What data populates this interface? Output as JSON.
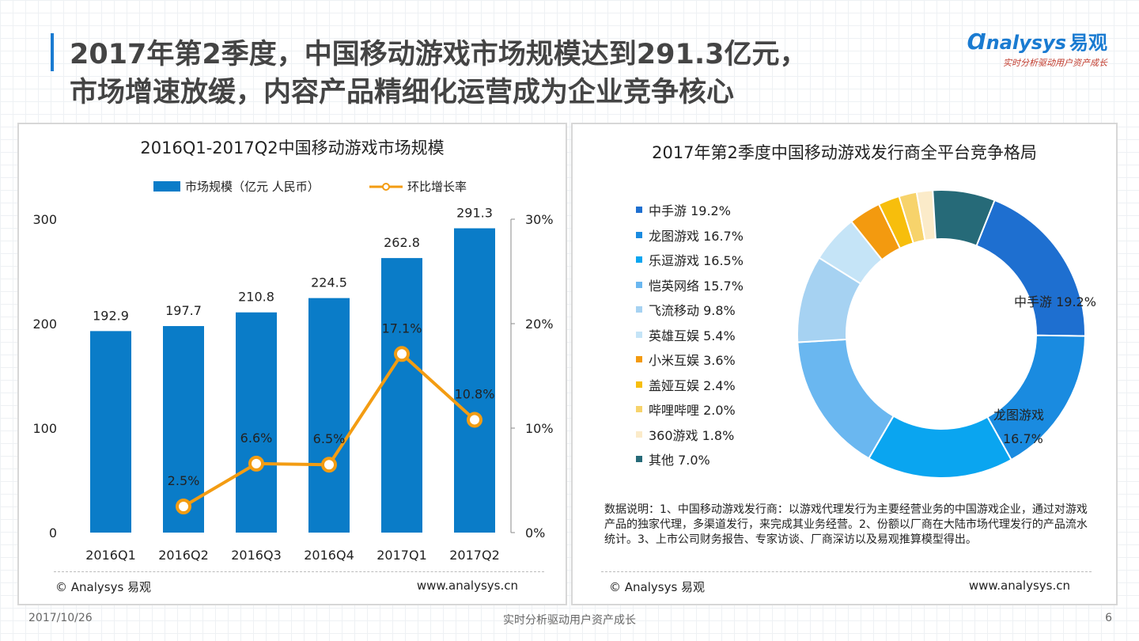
{
  "header": {
    "title_line1": "2017年第2季度，中国移动游戏市场规模达到291.3亿元，",
    "title_line2": "市场增速放缓，内容产品精细化运营成为企业竞争核心",
    "logo_text": "nalysys",
    "logo_cn": "易观",
    "logo_tagline": "实时分析驱动用户资产成长"
  },
  "left_panel": {
    "copyright": "© Analysys 易观",
    "url": "www.analysys.cn"
  },
  "right_panel": {
    "copyright": "© Analysys 易观",
    "url": "www.analysys.cn",
    "note": "数据说明：1、中国移动游戏发行商：以游戏代理发行为主要经营业务的中国游戏企业，通过对游戏产品的独家代理，多渠道发行，来完成其业务经营。2、份额以厂商在大陆市场代理发行的产品流水统计。3、上市公司财务报告、专家访谈、厂商深访以及易观推算模型得出。"
  },
  "page_footer": {
    "date": "2017/10/26",
    "slogan": "实时分析驱动用户资产成长",
    "page_number": "6"
  },
  "chart_data": [
    {
      "type": "bar",
      "title": "2016Q1-2017Q2中国移动游戏市场规模",
      "categories": [
        "2016Q1",
        "2016Q2",
        "2016Q3",
        "2016Q4",
        "2017Q1",
        "2017Q2"
      ],
      "series": [
        {
          "name": "市场规模（亿元 人民币）",
          "type": "bar",
          "axis": "left",
          "values": [
            192.9,
            197.7,
            210.8,
            224.5,
            262.8,
            291.3
          ],
          "labels": [
            "192.9",
            "197.7",
            "210.8",
            "224.5",
            "262.8",
            "291.3"
          ],
          "color": "#0a7cc8"
        },
        {
          "name": "环比增长率",
          "type": "line",
          "axis": "right",
          "values": [
            null,
            2.5,
            6.6,
            6.5,
            17.1,
            10.8
          ],
          "labels": [
            "",
            "2.5%",
            "6.6%",
            "6.5%",
            "17.1%",
            "10.8%"
          ],
          "color": "#f39c12"
        }
      ],
      "ylim": [
        0,
        300
      ],
      "yticks": [
        "0",
        "100",
        "200",
        "300"
      ],
      "y2lim": [
        0,
        30
      ],
      "y2ticks": [
        "0%",
        "10%",
        "20%",
        "30%"
      ],
      "legend_position": "top"
    },
    {
      "type": "pie",
      "donut": true,
      "title": "2017年第2季度中国移动游戏发行商全平台竞争格局",
      "slices": [
        {
          "name": "中手游",
          "value": 19.2,
          "label": "中手游 19.2%",
          "color": "#1e6fd0"
        },
        {
          "name": "龙图游戏",
          "value": 16.7,
          "label": "龙图游戏 16.7%",
          "color": "#1a8be0"
        },
        {
          "name": "乐逗游戏",
          "value": 16.5,
          "label": "乐逗游戏 16.5%",
          "color": "#0aa5f0"
        },
        {
          "name": "恺英网络",
          "value": 15.7,
          "label": "恺英网络 15.7%",
          "color": "#6ab7f0"
        },
        {
          "name": "飞流移动",
          "value": 9.8,
          "label": "飞流移动 9.8%",
          "color": "#a6d2f2"
        },
        {
          "name": "英雄互娱",
          "value": 5.4,
          "label": "英雄互娱 5.4%",
          "color": "#c5e4f7"
        },
        {
          "name": "小米互娱",
          "value": 3.6,
          "label": "小米互娱 3.6%",
          "color": "#f39a0f"
        },
        {
          "name": "盖娅互娱",
          "value": 2.4,
          "label": "盖娅互娱 2.4%",
          "color": "#f7be0c"
        },
        {
          "name": "哔哩哔哩",
          "value": 2.0,
          "label": "哔哩哔哩 2.0%",
          "color": "#f7d36b"
        },
        {
          "name": "360游戏",
          "value": 1.8,
          "label": "360游戏 1.8%",
          "color": "#fbebc9"
        },
        {
          "name": "其他",
          "value": 7.0,
          "label": "其他 7.0%",
          "color": "#266a78"
        }
      ],
      "slice_labels_on_chart": [
        "中手游 19.2%",
        "龙图游戏",
        "16.7%"
      ],
      "legend_position": "left"
    }
  ]
}
